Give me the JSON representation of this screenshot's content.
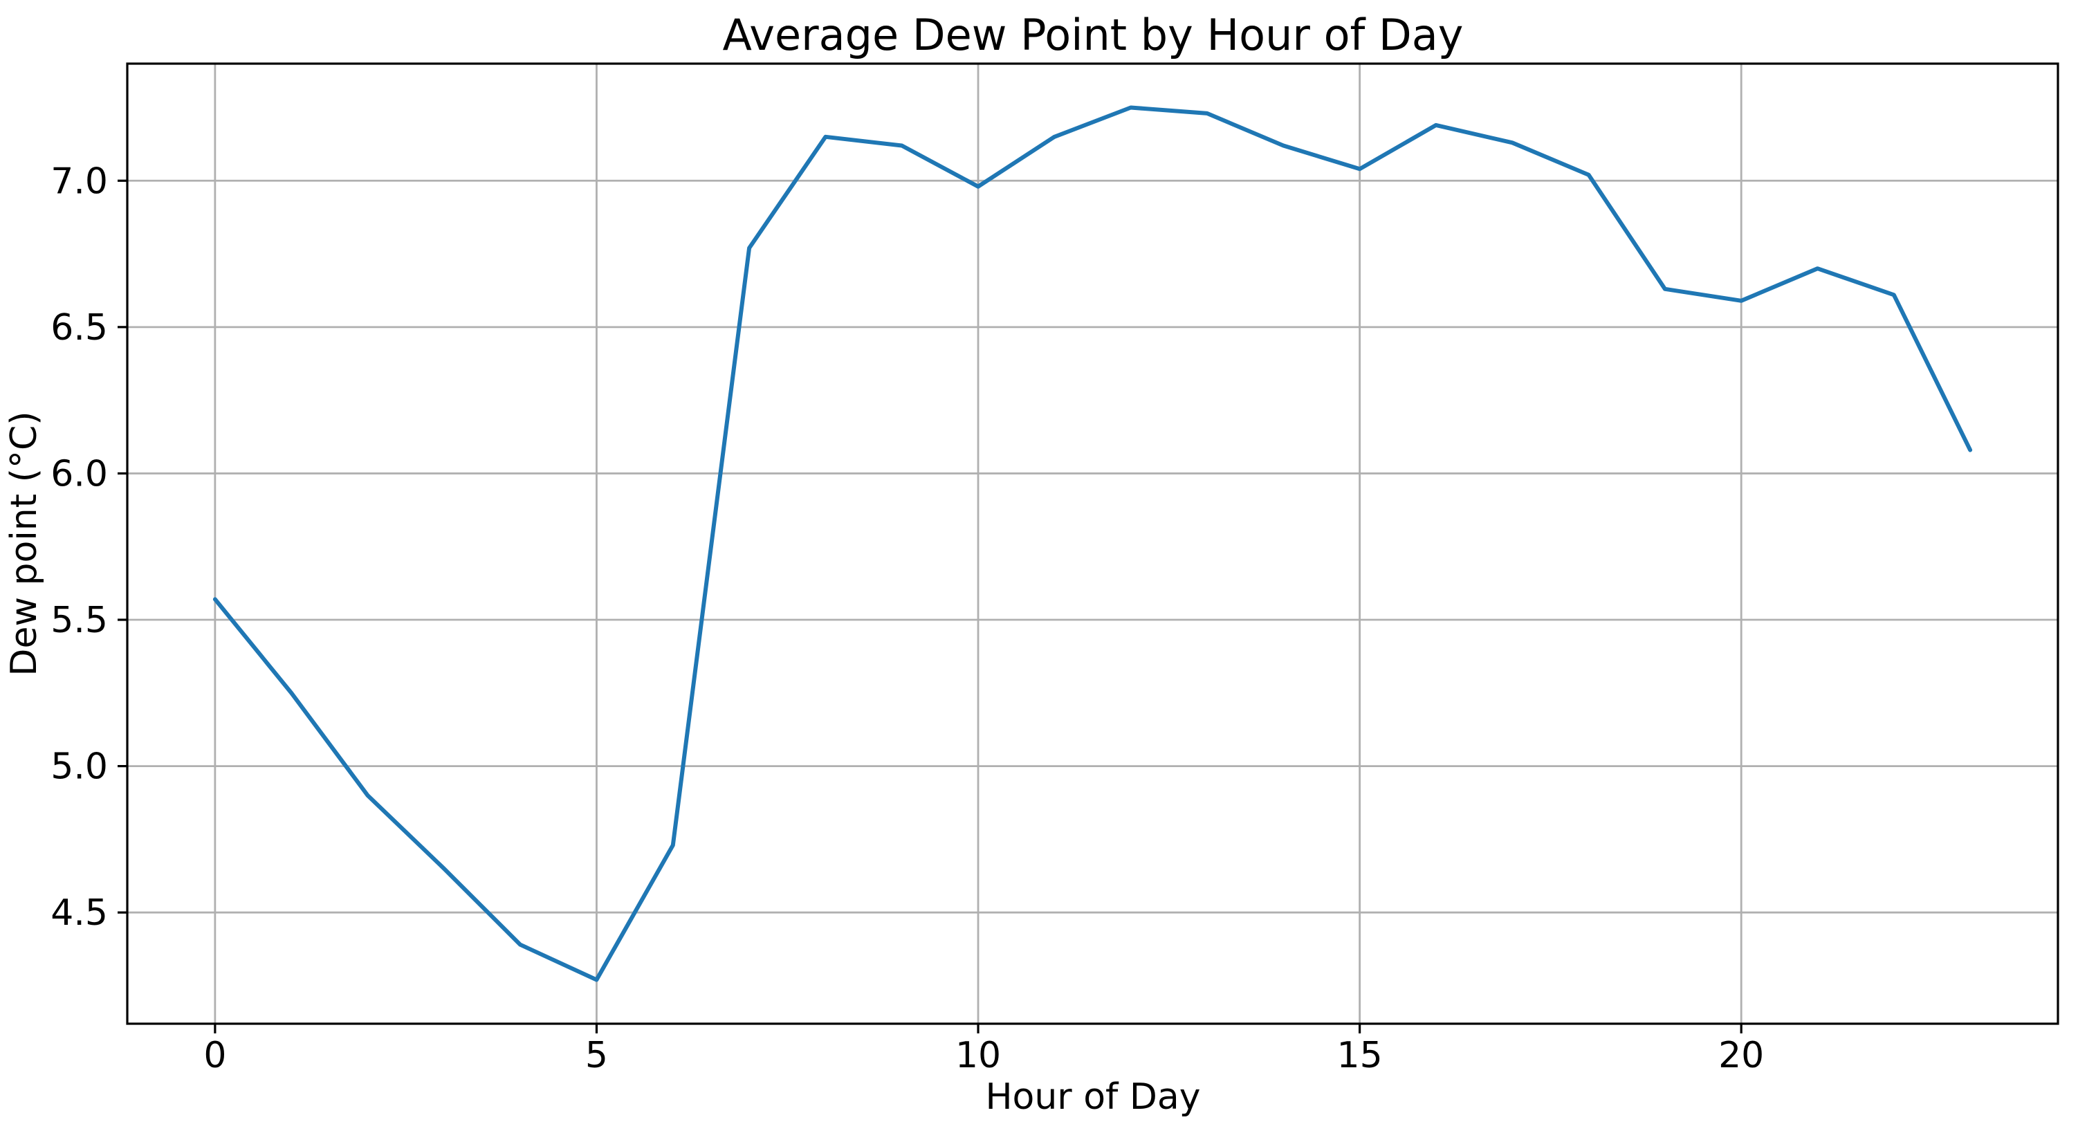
{
  "figure": {
    "background": "#ffffff",
    "text_color": "#000000",
    "spine_color": "#000000"
  },
  "chart_data": {
    "type": "line",
    "title": "Average Dew Point by Hour of Day",
    "xlabel": "Hour of Day",
    "ylabel": "Dew point (°C)",
    "x": [
      0,
      1,
      2,
      3,
      4,
      5,
      6,
      7,
      8,
      9,
      10,
      11,
      12,
      13,
      14,
      15,
      16,
      17,
      18,
      19,
      20,
      21,
      22,
      23
    ],
    "values": [
      5.57,
      5.25,
      4.9,
      4.65,
      4.39,
      4.27,
      4.73,
      6.77,
      7.15,
      7.12,
      6.98,
      7.15,
      7.25,
      7.23,
      7.12,
      7.04,
      7.19,
      7.13,
      7.02,
      6.63,
      6.59,
      6.7,
      6.61,
      6.08
    ],
    "xticks": [
      0,
      5,
      10,
      15,
      20
    ],
    "yticks": [
      4.5,
      5.0,
      5.5,
      6.0,
      6.5,
      7.0
    ],
    "xlim": [
      -1.15,
      24.15
    ],
    "ylim": [
      4.12,
      7.4
    ],
    "grid": true,
    "grid_color": "#b0b0b0",
    "line_color": "#1f77b4",
    "line_width": 6,
    "legend_position": "none"
  }
}
